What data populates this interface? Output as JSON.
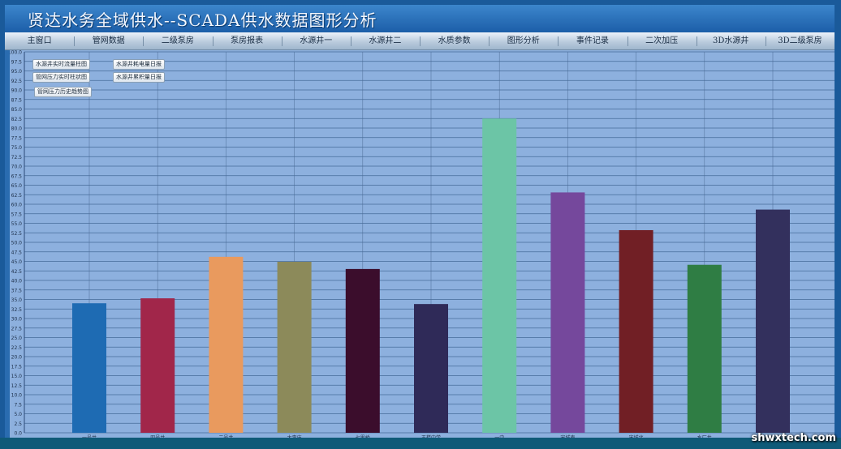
{
  "window": {
    "title": "贤达水务全域供水--SCADA供水数据图形分析"
  },
  "menu": {
    "items": [
      "主窗口",
      "管网数据",
      "二级泵房",
      "泵房报表",
      "水源井一",
      "水源井二",
      "水质参数",
      "图形分析",
      "事件记录",
      "二次加压",
      "3D水源井",
      "3D二级泵房"
    ]
  },
  "buttons": {
    "well_flow_bar": "水源井实时流量柱图",
    "well_power_daily": "水源井耗电量日报",
    "pipe_pressure_bar": "管网压力实时柱状图",
    "well_cumulative_daily": "水源井累积量日报",
    "pipe_pressure_trend": "管网压力历史趋势图"
  },
  "watermark": "shwxtech.com",
  "colors": {
    "plot_bg": "#8db0de",
    "gridline": "#3a5f8e"
  },
  "chart_data": {
    "type": "bar",
    "ylim": [
      0,
      100
    ],
    "ytick_step": 2.5,
    "grid": true,
    "categories": [
      "一号井",
      "四号井",
      "二号井",
      "大李庄",
      "七里桥",
      "王楼中学",
      "一中",
      "宋城南",
      "宋城北",
      "水厂井",
      ""
    ],
    "values": [
      34,
      35.3,
      46.2,
      44.9,
      43,
      33.8,
      82.5,
      63.1,
      53.2,
      44.1,
      58.6
    ],
    "colors": [
      "#1e6bb3",
      "#a1264a",
      "#e99a5e",
      "#8c8a5a",
      "#3b0d2c",
      "#2f2a58",
      "#6cc5a6",
      "#75489c",
      "#711f25",
      "#2f7d44",
      "#33305d"
    ]
  }
}
